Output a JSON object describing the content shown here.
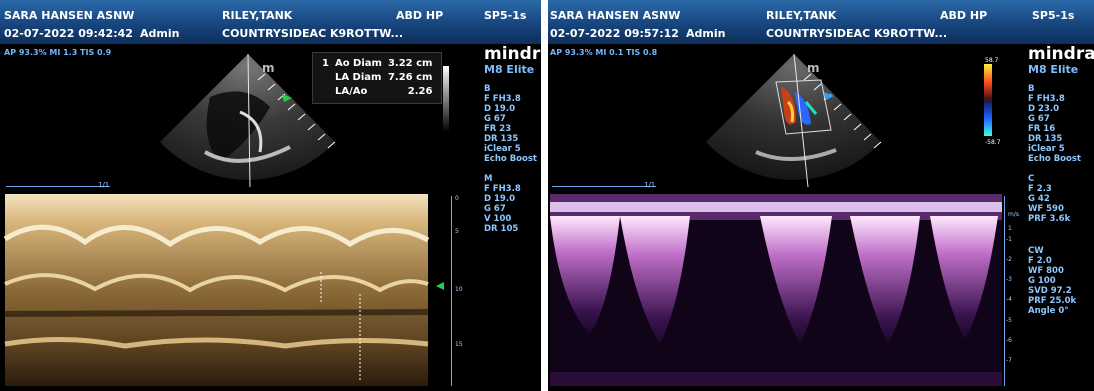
{
  "left": {
    "header": {
      "operator": "SARA HANSEN ASNW",
      "patient": "RILEY,TANK",
      "exam": "ABD HP",
      "probe": "SP5-1s",
      "datetime": "02-07-2022 09:42:42",
      "user": "Admin",
      "clinic": "COUNTRYSIDEAC K9ROTTW..."
    },
    "power_line": "AP 93.3%  MI 1.3  TIS 0.9",
    "brand": "mindray",
    "model": "M8 Elite",
    "measurements": {
      "index": "1",
      "rows": [
        {
          "label": "Ao Diam",
          "value": "3.22 cm"
        },
        {
          "label": "LA Diam",
          "value": "7.26 cm"
        },
        {
          "label": "LA/Ao",
          "value": "2.26"
        }
      ]
    },
    "params_b": [
      "B",
      "F FH3.8",
      "D 19.0",
      "G 67",
      "FR 23",
      "DR 135",
      "iClear 5",
      "Echo Boost"
    ],
    "params_m": [
      "M",
      "F FH3.8",
      "D 19.0",
      "G 67",
      "V 100",
      "DR 105"
    ],
    "marker": "m",
    "speed": "1/1",
    "depth_ticks": [
      "0",
      "5",
      "10",
      "15"
    ]
  },
  "right": {
    "header": {
      "operator": "SARA HANSEN ASNW",
      "patient": "RILEY,TANK",
      "exam": "ABD HP",
      "probe": "SP5-1s",
      "datetime": "02-07-2022 09:57:12",
      "user": "Admin",
      "clinic": "COUNTRYSIDEAC K9ROTTW..."
    },
    "power_line": "AP 93.3%  MI 0.1  TIS 0.8",
    "brand": "mindray",
    "model": "M8 Elite",
    "color_scale": {
      "top": "58.7",
      "bottom": "-58.7"
    },
    "params_b": [
      "B",
      "F FH3.8",
      "D 23.0",
      "G 67",
      "FR 16",
      "DR 135",
      "iClear 5",
      "Echo Boost"
    ],
    "params_c": [
      "C",
      "F 2.3",
      "G 42",
      "WF 590",
      "PRF 3.6k"
    ],
    "params_cw": [
      "CW",
      "F 2.0",
      "WF 800",
      "G 100",
      "SVD 97.2",
      "PRF 25.0k",
      "Angle 0°"
    ],
    "marker": "m",
    "speed": "1/1",
    "velocity_unit": "m/s",
    "velocity_ticks": [
      "1",
      "-1",
      "-2",
      "-3",
      "-4",
      "-5",
      "-6",
      "-7"
    ]
  },
  "colors": {
    "header_blue": "#16427a",
    "label_blue": "#8ec6ff",
    "mmode_tint": "#c8a060",
    "doppler_tint": "#d8a0ff"
  }
}
